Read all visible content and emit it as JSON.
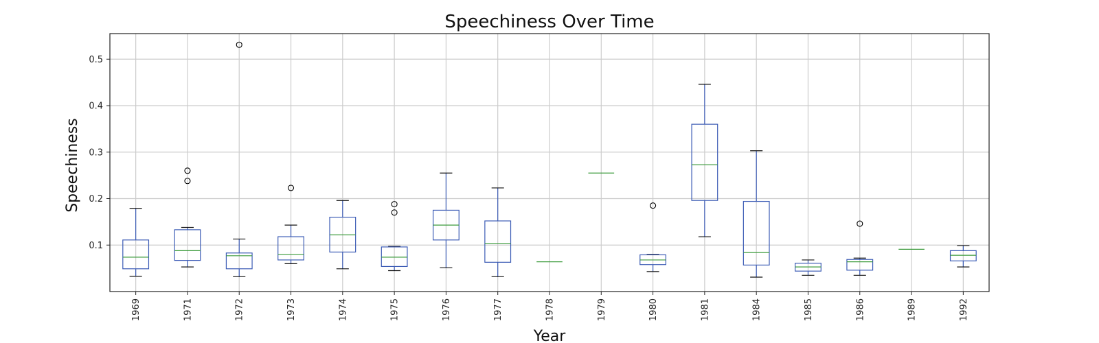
{
  "chart_data": {
    "type": "box",
    "title": "Speechiness Over Time",
    "xlabel": "Year",
    "ylabel": "Speechiness",
    "ylim": [
      0.0,
      0.555
    ],
    "yticks": [
      "0.1",
      "0.2",
      "0.3",
      "0.4",
      "0.5"
    ],
    "grid": true,
    "colors": {
      "box": "#3b5bb5",
      "median": "#3a9a3a",
      "whisker": "#3b5bb5",
      "cap": "#111111",
      "grid": "#cccccc",
      "axes": "#222222"
    },
    "categories": [
      "1969",
      "1971",
      "1972",
      "1973",
      "1974",
      "1975",
      "1976",
      "1977",
      "1978",
      "1979",
      "1980",
      "1981",
      "1984",
      "1985",
      "1986",
      "1989",
      "1992"
    ],
    "boxes": [
      {
        "year": "1969",
        "whislo": 0.033,
        "q1": 0.049,
        "med": 0.074,
        "q3": 0.111,
        "whishi": 0.179,
        "fliers": []
      },
      {
        "year": "1971",
        "whislo": 0.053,
        "q1": 0.067,
        "med": 0.088,
        "q3": 0.133,
        "whishi": 0.138,
        "fliers": [
          0.238,
          0.26
        ]
      },
      {
        "year": "1972",
        "whislo": 0.032,
        "q1": 0.049,
        "med": 0.077,
        "q3": 0.083,
        "whishi": 0.113,
        "fliers": [
          0.531
        ]
      },
      {
        "year": "1973",
        "whislo": 0.06,
        "q1": 0.068,
        "med": 0.08,
        "q3": 0.118,
        "whishi": 0.143,
        "fliers": [
          0.223
        ]
      },
      {
        "year": "1974",
        "whislo": 0.049,
        "q1": 0.085,
        "med": 0.122,
        "q3": 0.16,
        "whishi": 0.196,
        "fliers": []
      },
      {
        "year": "1975",
        "whislo": 0.045,
        "q1": 0.054,
        "med": 0.074,
        "q3": 0.096,
        "whishi": 0.097,
        "fliers": [
          0.17,
          0.188
        ]
      },
      {
        "year": "1976",
        "whislo": 0.051,
        "q1": 0.111,
        "med": 0.143,
        "q3": 0.175,
        "whishi": 0.255,
        "fliers": []
      },
      {
        "year": "1977",
        "whislo": 0.032,
        "q1": 0.063,
        "med": 0.104,
        "q3": 0.152,
        "whishi": 0.223,
        "fliers": []
      },
      {
        "year": "1978",
        "whislo": 0.064,
        "q1": 0.064,
        "med": 0.064,
        "q3": 0.064,
        "whishi": 0.064,
        "fliers": []
      },
      {
        "year": "1979",
        "whislo": 0.255,
        "q1": 0.255,
        "med": 0.255,
        "q3": 0.255,
        "whishi": 0.255,
        "fliers": []
      },
      {
        "year": "1980",
        "whislo": 0.043,
        "q1": 0.058,
        "med": 0.068,
        "q3": 0.079,
        "whishi": 0.08,
        "fliers": [
          0.185
        ]
      },
      {
        "year": "1981",
        "whislo": 0.118,
        "q1": 0.196,
        "med": 0.273,
        "q3": 0.36,
        "whishi": 0.446,
        "fliers": []
      },
      {
        "year": "1984",
        "whislo": 0.031,
        "q1": 0.057,
        "med": 0.084,
        "q3": 0.194,
        "whishi": 0.303,
        "fliers": []
      },
      {
        "year": "1985",
        "whislo": 0.035,
        "q1": 0.044,
        "med": 0.053,
        "q3": 0.061,
        "whishi": 0.068,
        "fliers": []
      },
      {
        "year": "1986",
        "whislo": 0.035,
        "q1": 0.046,
        "med": 0.064,
        "q3": 0.069,
        "whishi": 0.072,
        "fliers": [
          0.146
        ]
      },
      {
        "year": "1989",
        "whislo": 0.091,
        "q1": 0.091,
        "med": 0.091,
        "q3": 0.091,
        "whishi": 0.091,
        "fliers": []
      },
      {
        "year": "1992",
        "whislo": 0.053,
        "q1": 0.066,
        "med": 0.078,
        "q3": 0.088,
        "whishi": 0.099,
        "fliers": []
      }
    ]
  }
}
